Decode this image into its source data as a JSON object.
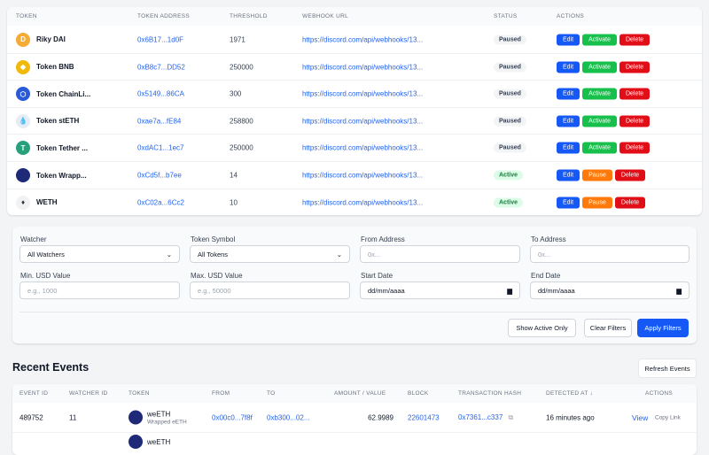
{
  "watchers": {
    "headers": [
      "Token",
      "Token Address",
      "Threshold",
      "Webhook URL",
      "Status",
      "Actions"
    ],
    "rows": [
      {
        "token": "Riky DAI",
        "icon": "dai-icon",
        "color": "#f5ac37",
        "glyph": "D",
        "address": "0x6B17...1d0F",
        "threshold": "1971",
        "webhook": "https://discord.com/api/webhooks/13...",
        "status": "Paused",
        "actions": [
          "Edit",
          "Activate",
          "Delete"
        ]
      },
      {
        "token": "Token BNB",
        "icon": "bnb-icon",
        "color": "#f0b90b",
        "glyph": "◆",
        "address": "0xB8c7...DD52",
        "threshold": "250000",
        "webhook": "https://discord.com/api/webhooks/13...",
        "status": "Paused",
        "actions": [
          "Edit",
          "Activate",
          "Delete"
        ]
      },
      {
        "token": "Token ChainLi...",
        "icon": "chainlink-icon",
        "color": "#2a5ada",
        "glyph": "⬡",
        "address": "0x5149...86CA",
        "threshold": "300",
        "webhook": "https://discord.com/api/webhooks/13...",
        "status": "Paused",
        "actions": [
          "Edit",
          "Activate",
          "Delete"
        ]
      },
      {
        "token": "Token stETH",
        "icon": "steth-icon",
        "color": "#e6ecf5",
        "glyph": "💧",
        "address": "0xae7a...fE84",
        "threshold": "258800",
        "webhook": "https://discord.com/api/webhooks/13...",
        "status": "Paused",
        "actions": [
          "Edit",
          "Activate",
          "Delete"
        ]
      },
      {
        "token": "Token Tether ...",
        "icon": "tether-icon",
        "color": "#26a17b",
        "glyph": "T",
        "address": "0xdAC1...1ec7",
        "threshold": "250000",
        "webhook": "https://discord.com/api/webhooks/13...",
        "status": "Paused",
        "actions": [
          "Edit",
          "Activate",
          "Delete"
        ]
      },
      {
        "token": "Token Wrapp...",
        "icon": "wrapped-token-icon",
        "color": "#1e2a78",
        "glyph": "",
        "address": "0xCd5f...b7ee",
        "threshold": "14",
        "webhook": "https://discord.com/api/webhooks/13...",
        "status": "Active",
        "actions": [
          "Edit",
          "Pause",
          "Delete"
        ]
      },
      {
        "token": "WETH",
        "icon": "ethereum-icon",
        "color": "#f1f2f4",
        "glyph": "♦",
        "address": "0xC02a...6Cc2",
        "threshold": "10",
        "webhook": "https://discord.com/api/webhooks/13...",
        "status": "Active",
        "actions": [
          "Edit",
          "Pause",
          "Delete"
        ]
      }
    ]
  },
  "filters": {
    "watcher": {
      "label": "Watcher",
      "value": "All Watchers"
    },
    "token_symbol": {
      "label": "Token Symbol",
      "value": "All Tokens"
    },
    "from_address": {
      "label": "From Address",
      "placeholder": "0x..."
    },
    "to_address": {
      "label": "To Address",
      "placeholder": "0x..."
    },
    "min_usd": {
      "label": "Min. USD Value",
      "placeholder": "e.g., 1000"
    },
    "max_usd": {
      "label": "Max. USD Value",
      "placeholder": "e.g., 50000"
    },
    "start_date": {
      "label": "Start Date",
      "value": "dd/mm/aaaa"
    },
    "end_date": {
      "label": "End Date",
      "value": "dd/mm/aaaa"
    },
    "show_active": "Show Active Only",
    "clear": "Clear Filters",
    "apply": "Apply Filters"
  },
  "events": {
    "title": "Recent Events",
    "refresh": "Refresh Events",
    "headers": [
      "Event ID",
      "Watcher ID",
      "Token",
      "From",
      "To",
      "Amount / Value",
      "Block",
      "Transaction Hash",
      "Detected At ↓",
      "Actions"
    ],
    "rows": [
      {
        "event_id": "489752",
        "watcher_id": "11",
        "token": "weETH",
        "token_sub": "Wrapped eETH",
        "from": "0x00c0...7f8f",
        "to": "0xb300...02...",
        "amount": "62.9989",
        "block": "22601473",
        "tx": "0x7361...c337",
        "detected": "16 minutes ago",
        "view": "View",
        "copy": "Copy Link"
      },
      {
        "token": "weETH"
      }
    ]
  },
  "colors": {
    "primary": "#1558f5",
    "success": "#16c04a",
    "danger": "#e20e17",
    "warning": "#ff7a0a"
  }
}
